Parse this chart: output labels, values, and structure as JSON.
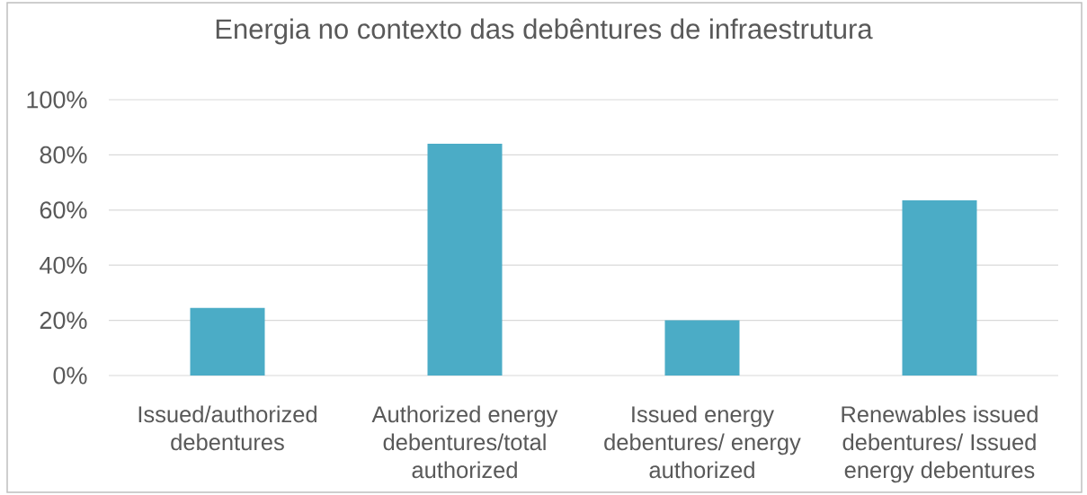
{
  "chart_data": {
    "type": "bar",
    "title": "Energia no contexto das debêntures de infraestrutura",
    "categories": [
      "Issued/authorized debentures",
      "Authorized energy debentures/total authorized",
      "Issued energy debentures/ energy authorized",
      "Renewables issued debentures/ Issued energy debentures"
    ],
    "values": [
      24.5,
      84,
      20,
      63.5
    ],
    "color": "#4bacc6",
    "ylim": [
      0,
      100
    ],
    "yticks": [
      {
        "value": 0,
        "label": "0%"
      },
      {
        "value": 20,
        "label": "20%"
      },
      {
        "value": 40,
        "label": "40%"
      },
      {
        "value": 60,
        "label": "60%"
      },
      {
        "value": 80,
        "label": "80%"
      },
      {
        "value": 100,
        "label": "100%"
      }
    ],
    "grid": "y"
  }
}
